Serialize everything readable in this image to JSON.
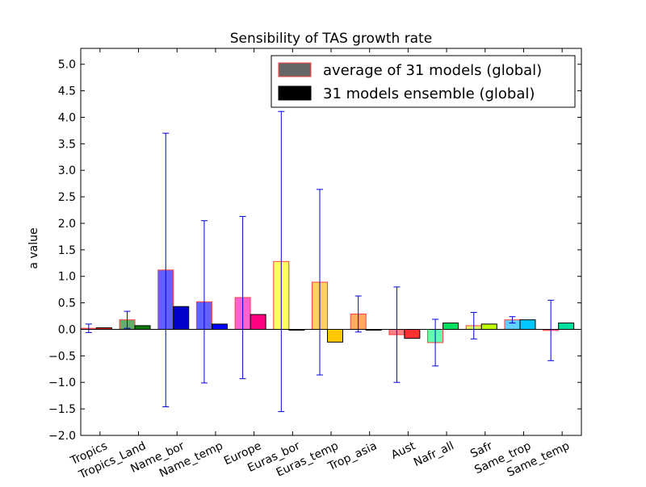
{
  "chart_data": {
    "type": "bar",
    "title": "Sensibility of TAS growth rate",
    "xlabel": "",
    "ylabel": "a value",
    "ylim": [
      -2.0,
      5.3
    ],
    "yticks": [
      -2.0,
      -1.5,
      -1.0,
      -0.5,
      0.0,
      0.5,
      1.0,
      1.5,
      2.0,
      2.5,
      3.0,
      3.5,
      4.0,
      4.5,
      5.0
    ],
    "ytick_labels": [
      "−2.0",
      "−1.5",
      "−1.0",
      "−0.5",
      "0.0",
      "0.5",
      "1.0",
      "1.5",
      "2.0",
      "2.5",
      "3.0",
      "3.5",
      "4.0",
      "4.5",
      "5.0"
    ],
    "categories": [
      "Tropics",
      "Tropics_Land",
      "Name_bor",
      "Name_temp",
      "Europe",
      "Euras_bor",
      "Euras_temp",
      "Trop_asia",
      "Aust",
      "Nafr_all",
      "Safr",
      "Same_trop",
      "Same_temp"
    ],
    "legend_position": "top-right",
    "grid": false,
    "series": [
      {
        "name": "average of 31 models (global)",
        "legend_color": "#666666",
        "edge_color": "#ff4040",
        "values": [
          0.02,
          0.18,
          1.12,
          0.52,
          0.6,
          1.28,
          0.89,
          0.29,
          -0.1,
          -0.25,
          0.07,
          0.18,
          -0.02
        ],
        "errors": [
          0.08,
          0.16,
          2.58,
          1.53,
          1.53,
          2.83,
          1.75,
          0.34,
          0.9,
          0.44,
          0.25,
          0.06,
          0.57
        ],
        "colors": [
          "#ff6a6a",
          "#4aa04a",
          "#4545ff",
          "#4545ff",
          "#ff45c8",
          "#ffff45",
          "#ffc845",
          "#ff9c45",
          "#ff6a6a",
          "#45ff9c",
          "#d4ff45",
          "#45c8ff",
          "#ff6a6a"
        ]
      },
      {
        "name": "31 models ensemble (global)",
        "legend_color": "#000000",
        "edge_color": "#000000",
        "values": [
          0.03,
          0.07,
          0.43,
          0.1,
          0.28,
          0.0,
          -0.24,
          0.0,
          -0.17,
          0.12,
          0.1,
          0.18,
          0.12
        ],
        "colors": [
          "#ff0000",
          "#0a7a0a",
          "#0000cc",
          "#0000ff",
          "#ff0080",
          "#ffff00",
          "#ffc800",
          "#ff8000",
          "#ff3030",
          "#00e060",
          "#c0ff00",
          "#00c8ff",
          "#00e0a0"
        ]
      }
    ]
  }
}
